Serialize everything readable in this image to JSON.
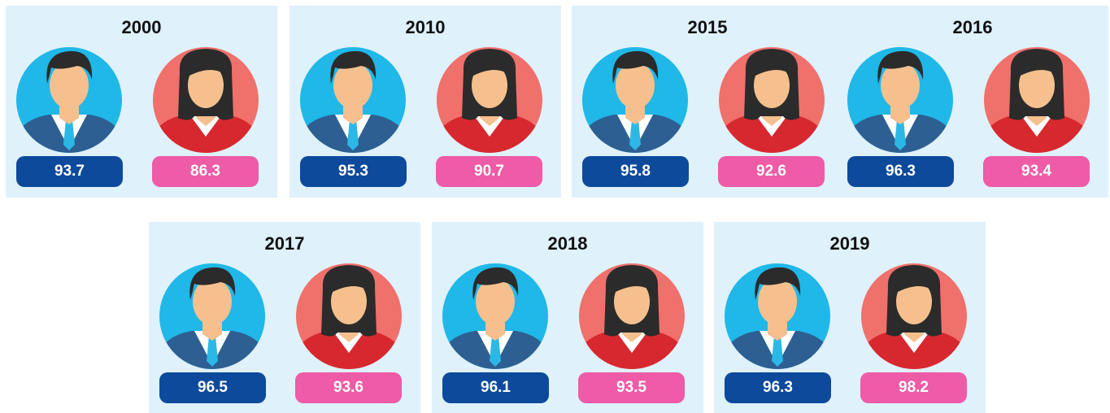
{
  "cards": [
    {
      "year": "2000",
      "male": 93.7,
      "female": 86.3
    },
    {
      "year": "2010",
      "male": 95.3,
      "female": 90.7
    },
    {
      "year": "2015",
      "male": 95.8,
      "female": 92.6
    },
    {
      "year": "2016",
      "male": 96.3,
      "female": 93.4
    },
    {
      "year": "2017",
      "male": 96.5,
      "female": 93.6
    },
    {
      "year": "2018",
      "male": 96.1,
      "female": 93.5
    },
    {
      "year": "2019",
      "male": 96.3,
      "female": 98.2
    }
  ]
}
